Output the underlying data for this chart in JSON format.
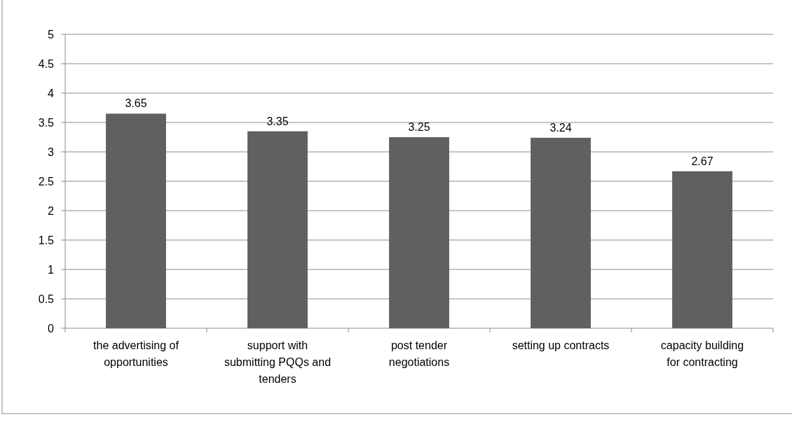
{
  "chart_data": {
    "type": "bar",
    "categories": [
      "the advertising of opportunities",
      "support with submitting PQQs and tenders",
      "post tender negotiations",
      "setting up contracts",
      "capacity building for contracting"
    ],
    "values": [
      3.65,
      3.35,
      3.25,
      3.24,
      2.67
    ],
    "color": "#606060",
    "ylim": [
      0,
      5
    ],
    "yticks": [
      0,
      {
        "value": 0.5,
        "label": "0.5"
      },
      1,
      {
        "value": 1.5,
        "label": "1.5"
      },
      2,
      {
        "value": 2.5,
        "label": "2.5"
      },
      3,
      {
        "value": 3.5,
        "label": "3.5"
      },
      4,
      {
        "value": 4.5,
        "label": "4.5"
      },
      5
    ],
    "grid": "y",
    "data_labels": true
  }
}
